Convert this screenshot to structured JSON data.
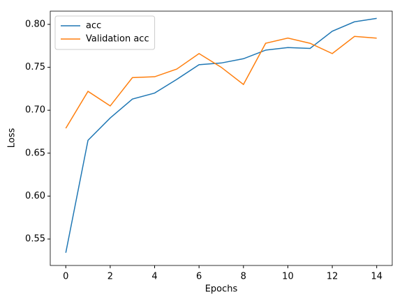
{
  "chart_data": {
    "type": "line",
    "xlabel": "Epochs",
    "ylabel": "Loss",
    "x": [
      0,
      1,
      2,
      3,
      4,
      5,
      6,
      7,
      8,
      9,
      10,
      11,
      12,
      13,
      14
    ],
    "series": [
      {
        "name": "acc",
        "color": "#1f77b4",
        "values": [
          0.534,
          0.665,
          0.691,
          0.713,
          0.72,
          0.736,
          0.753,
          0.755,
          0.76,
          0.77,
          0.773,
          0.772,
          0.792,
          0.803,
          0.807
        ]
      },
      {
        "name": "Validation acc",
        "color": "#ff7f0e",
        "values": [
          0.679,
          0.722,
          0.705,
          0.738,
          0.739,
          0.748,
          0.766,
          0.75,
          0.73,
          0.778,
          0.784,
          0.778,
          0.766,
          0.786,
          0.784
        ]
      }
    ],
    "xlim": [
      -0.7,
      14.7
    ],
    "xticks": [
      0,
      2,
      4,
      6,
      8,
      10,
      12,
      14
    ],
    "ylim": [
      0.5192,
      0.8154
    ],
    "yticks": [
      0.55,
      {
        "value": 0.6,
        "label": "0.60"
      },
      0.65,
      {
        "value": 0.7,
        "label": "0.70"
      },
      0.75,
      {
        "value": 0.8,
        "label": "0.80"
      }
    ],
    "legend": "upper left"
  }
}
